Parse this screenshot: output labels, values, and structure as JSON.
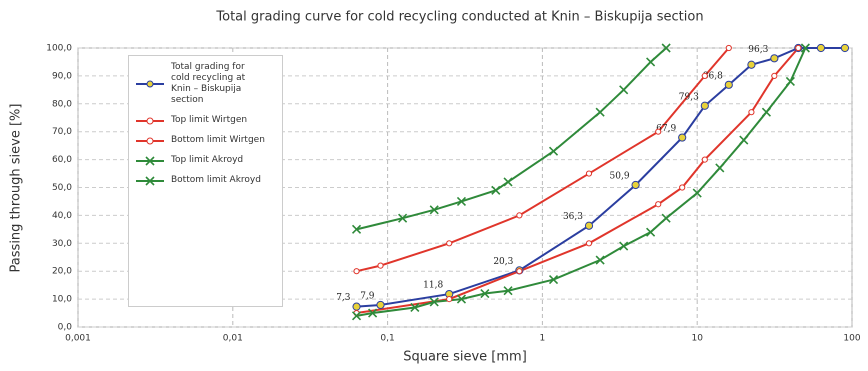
{
  "chart_data": {
    "type": "line",
    "title": "Total grading curve for cold recycling conducted at Knin – Biskupija section",
    "x_label": "Square sieve  [mm]",
    "y_label": "Passing through sieve  [%]",
    "x_scale": "log",
    "grid": true,
    "legend_position": "upper left",
    "xlim": [
      0.001,
      100
    ],
    "ylim": [
      0,
      100
    ],
    "xticks": [
      {
        "value": 0.001,
        "label": "0,001"
      },
      {
        "value": 0.01,
        "label": "0,01"
      },
      {
        "value": 0.1,
        "label": "0,1"
      },
      1,
      10,
      100
    ],
    "yticks": [
      {
        "value": 0,
        "label": "0,0"
      },
      {
        "value": 10,
        "label": "10,0"
      },
      {
        "value": 20,
        "label": "20,0"
      },
      {
        "value": 30,
        "label": "30,0"
      },
      {
        "value": 40,
        "label": "40,0"
      },
      {
        "value": 50,
        "label": "50,0"
      },
      {
        "value": 60,
        "label": "60,0"
      },
      {
        "value": 70,
        "label": "70,0"
      },
      {
        "value": 80,
        "label": "80,0"
      },
      {
        "value": 90,
        "label": "90,0"
      },
      {
        "value": 100,
        "label": "100,0"
      }
    ],
    "series": [
      {
        "name": "Total grading for cold recycling at Knin – Biskupija section",
        "color": "#2b3ea0",
        "marker": "circle",
        "marker_fill": "#e8d23a",
        "x": [
          0.063,
          0.09,
          0.25,
          0.71,
          2,
          4,
          8,
          11.2,
          16,
          22.4,
          31.5,
          45,
          63,
          90
        ],
        "values": [
          7.3,
          7.9,
          11.8,
          20.3,
          36.3,
          50.9,
          67.9,
          79.3,
          86.8,
          94,
          96.3,
          100,
          100,
          100
        ],
        "value_labels": [
          "7,3",
          "7,9",
          "11,8",
          "20,3",
          "36,3",
          "50,9",
          "67,9",
          "79,3",
          "86,8",
          null,
          "96,3",
          null,
          null,
          null
        ]
      },
      {
        "name": "Top limit Wirtgen",
        "color": "#e0352b",
        "marker": "circle",
        "marker_fill": "#ffffff",
        "x": [
          0.063,
          0.09,
          0.25,
          0.71,
          2,
          5.6,
          11.2,
          16
        ],
        "values": [
          20,
          22,
          30,
          40,
          55,
          70,
          90,
          100
        ]
      },
      {
        "name": "Bottom limit Wirtgen",
        "color": "#e0352b",
        "marker": "circle",
        "marker_fill": "#ffffff",
        "x": [
          0.063,
          0.25,
          0.71,
          2,
          5.6,
          8,
          11.2,
          22.4,
          31.5,
          45
        ],
        "values": [
          5,
          10,
          20,
          30,
          44,
          50,
          60,
          77,
          90,
          100
        ]
      },
      {
        "name": "Top limit Akroyd",
        "color": "#2f8a3a",
        "marker": "x",
        "marker_fill": "#2f8a3a",
        "x": [
          0.063,
          0.125,
          0.2,
          0.3,
          0.5,
          0.6,
          1.18,
          2.36,
          3.35,
          5,
          6.3
        ],
        "values": [
          35,
          39,
          42,
          45,
          49,
          52,
          63,
          77,
          85,
          95,
          100
        ]
      },
      {
        "name": "Bottom limit Akroyd",
        "color": "#2f8a3a",
        "marker": "x",
        "marker_fill": "#2f8a3a",
        "x": [
          0.063,
          0.08,
          0.15,
          0.2,
          0.3,
          0.425,
          0.6,
          1.18,
          2.36,
          3.35,
          5,
          6.3,
          10,
          14,
          20,
          28,
          40,
          50
        ],
        "values": [
          4,
          5,
          7,
          9,
          10,
          12,
          13,
          17,
          24,
          29,
          34,
          39,
          48,
          57,
          67,
          77,
          88,
          100
        ]
      }
    ]
  }
}
